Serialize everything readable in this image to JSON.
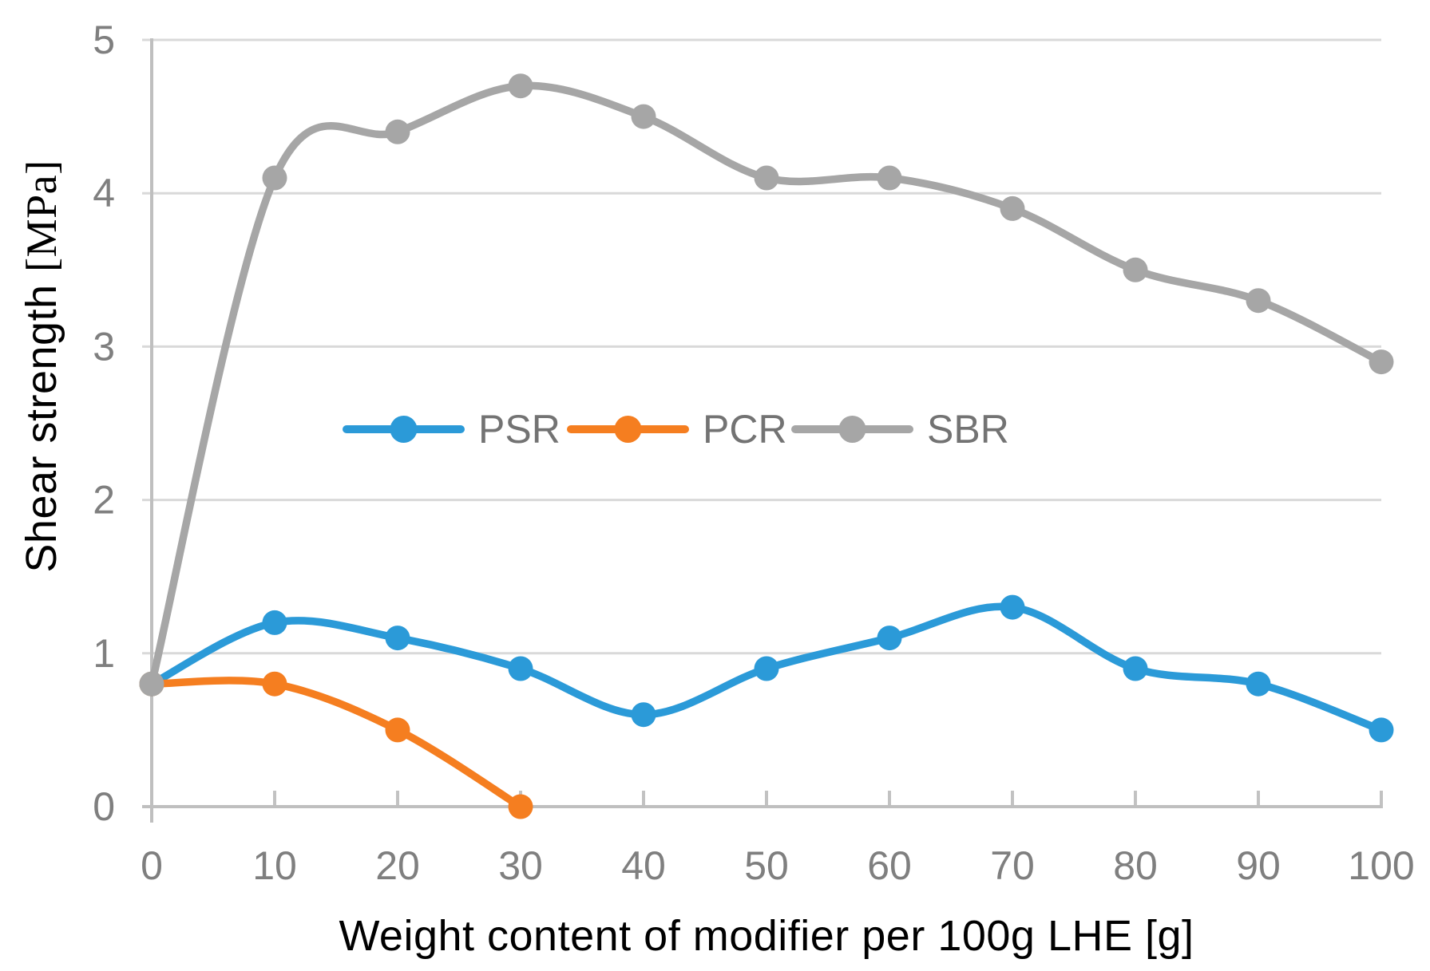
{
  "chart_data": {
    "type": "line",
    "title": "",
    "xlabel": "Weight content of modifier per 100g LHE [g]",
    "ylabel": "Shear strength [MPa]",
    "ylabel_main": "Shear strength ",
    "ylabel_unit": "[MPa]",
    "xlim": [
      0,
      100
    ],
    "ylim": [
      0,
      5
    ],
    "x_ticks": [
      0,
      10,
      20,
      30,
      40,
      50,
      60,
      70,
      80,
      90,
      100
    ],
    "y_ticks": [
      0,
      1,
      2,
      3,
      4,
      5
    ],
    "grid": "horizontal",
    "smooth": true,
    "legend_position": "inside-middle-left-row",
    "series": [
      {
        "name": "PSR",
        "color": "#2B9AD8",
        "x": [
          0,
          10,
          20,
          30,
          40,
          50,
          60,
          70,
          80,
          90,
          100
        ],
        "values": [
          0.8,
          1.2,
          1.1,
          0.9,
          0.6,
          0.9,
          1.1,
          1.3,
          0.9,
          0.8,
          0.5
        ]
      },
      {
        "name": "PCR",
        "color": "#F57E20",
        "x": [
          0,
          10,
          20,
          30
        ],
        "values": [
          0.8,
          0.8,
          0.5,
          0.0
        ]
      },
      {
        "name": "SBR",
        "color": "#A6A6A6",
        "x": [
          0,
          10,
          20,
          30,
          40,
          50,
          60,
          70,
          80,
          90,
          100
        ],
        "values": [
          0.8,
          4.1,
          4.4,
          4.7,
          4.5,
          4.1,
          4.1,
          3.9,
          3.5,
          3.3,
          2.9
        ]
      }
    ],
    "colors": {
      "gridline": "#D9D9D9",
      "axis_line": "#BFBFBF",
      "tick_mark": "#C2C2C2",
      "tick_label": "#7F7F7F",
      "legend_text": "#737373",
      "axis_title": "#000000",
      "background": "#FFFFFF"
    }
  }
}
